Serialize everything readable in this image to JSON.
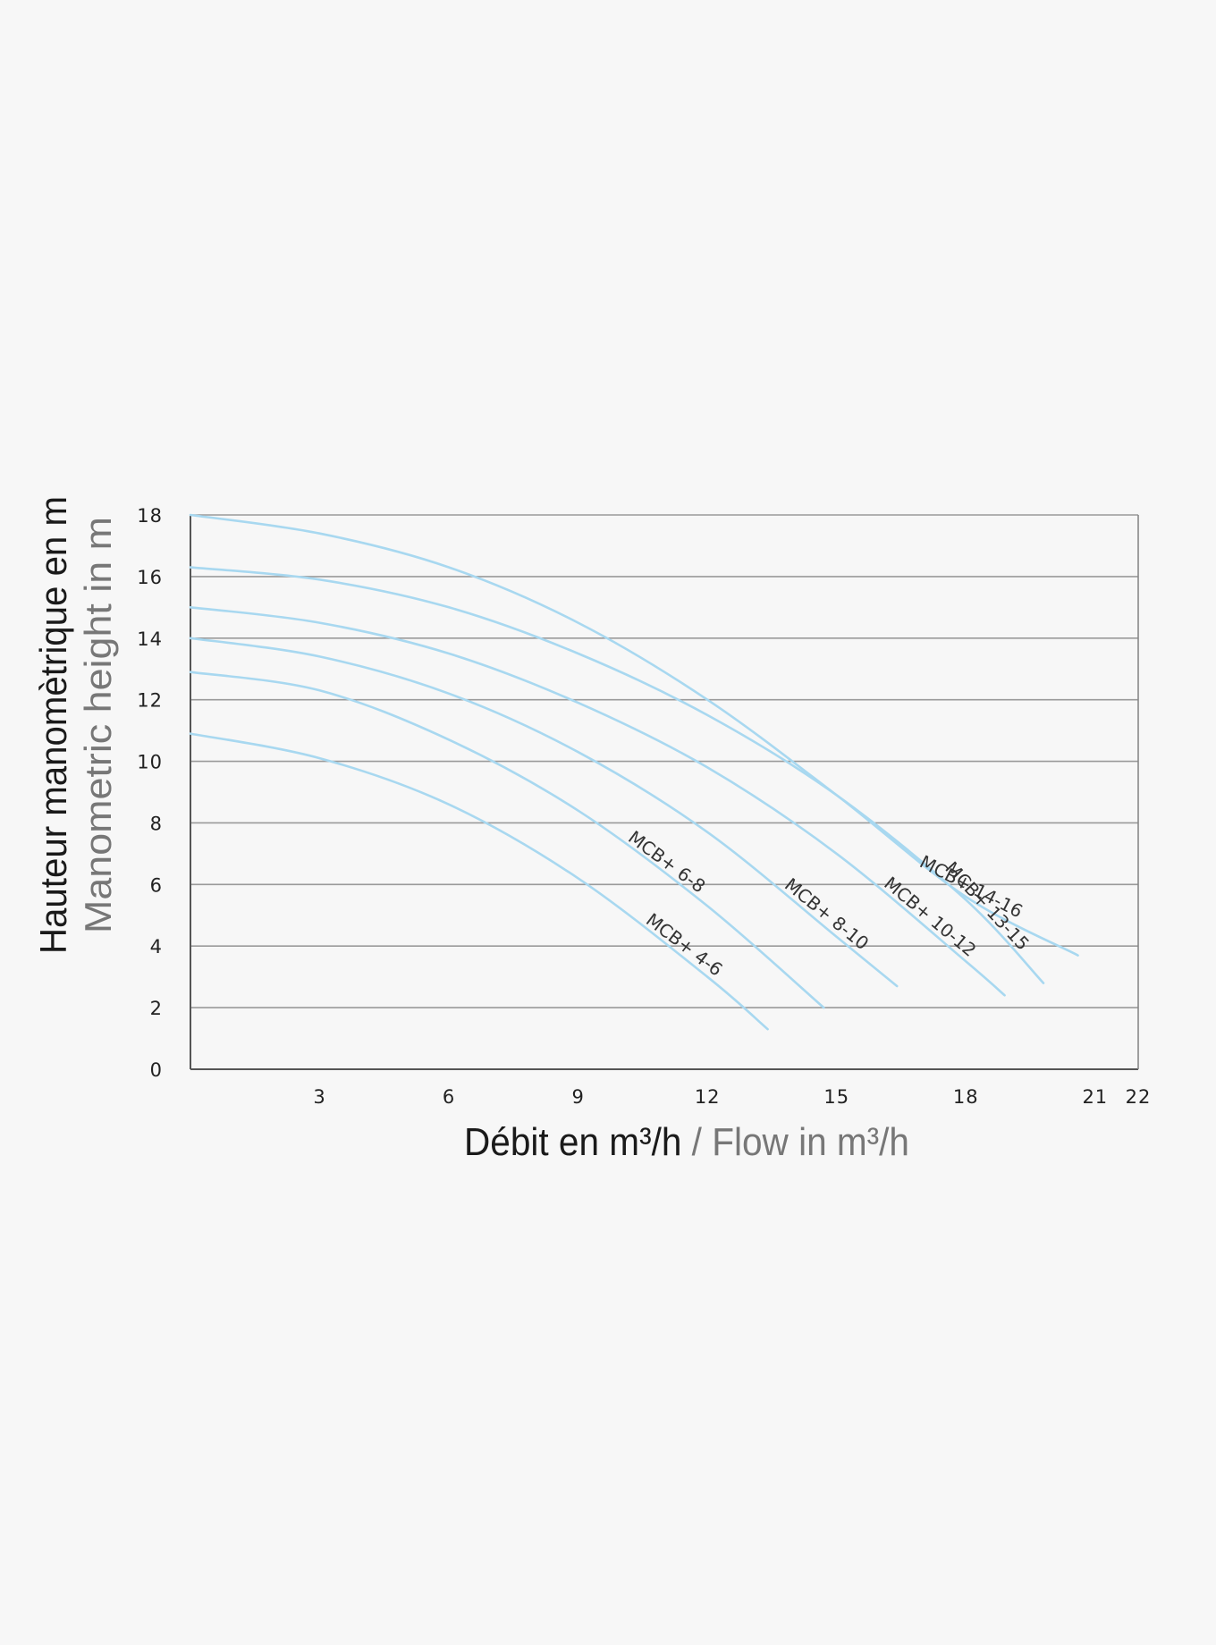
{
  "chart_data": {
    "type": "line",
    "title": "",
    "xlabel": {
      "fr": "Débit en m³/h",
      "separator": " / ",
      "en": "Flow in m³/h"
    },
    "ylabel": {
      "fr": "Hauteur manomètrique en m",
      "en": "Manometric height in m"
    },
    "xlim": [
      0,
      22
    ],
    "ylim": [
      0,
      18
    ],
    "x_ticks": [
      3,
      6,
      9,
      12,
      15,
      18,
      21,
      22
    ],
    "y_ticks": [
      0,
      2,
      4,
      6,
      8,
      10,
      12,
      14,
      16,
      18
    ],
    "grid": "horizontal",
    "line_color": "#a8d8f0",
    "series": [
      {
        "name": "MCB+ 4-6",
        "label": "MCB+ 4-6",
        "x": [
          0,
          3,
          6,
          9,
          12,
          13.4
        ],
        "y": [
          10.9,
          10.1,
          8.6,
          6.2,
          3.0,
          1.3
        ]
      },
      {
        "name": "MCB+ 6-8",
        "label": "MCB+ 6-8",
        "x": [
          0,
          3,
          6,
          9,
          12,
          14.7
        ],
        "y": [
          12.9,
          12.3,
          10.7,
          8.4,
          5.3,
          2.0
        ]
      },
      {
        "name": "MCB+ 8-10",
        "label": "MCB+ 8-10",
        "x": [
          0,
          3,
          6,
          9,
          12,
          15,
          16.4
        ],
        "y": [
          14.0,
          13.4,
          12.2,
          10.3,
          7.7,
          4.3,
          2.7
        ]
      },
      {
        "name": "MCB+ 10-12",
        "label": "MCB+ 10-12",
        "x": [
          0,
          3,
          6,
          9,
          12,
          15,
          18,
          18.9
        ],
        "y": [
          15.0,
          14.5,
          13.5,
          11.9,
          9.8,
          7.0,
          3.5,
          2.4
        ]
      },
      {
        "name": "MCB+ 13-15",
        "label": "MCB+ 13-15",
        "x": [
          0,
          3,
          6,
          9,
          12,
          15,
          18,
          19.8
        ],
        "y": [
          16.3,
          15.9,
          15.0,
          13.5,
          11.5,
          8.9,
          5.5,
          2.8
        ]
      },
      {
        "name": "MCB+ 14-16",
        "label": "MCB+ 14-16",
        "x": [
          0,
          3,
          6,
          9,
          12,
          15,
          18,
          20.6
        ],
        "y": [
          18.0,
          17.4,
          16.3,
          14.5,
          12.0,
          8.9,
          5.6,
          3.7
        ]
      }
    ]
  }
}
